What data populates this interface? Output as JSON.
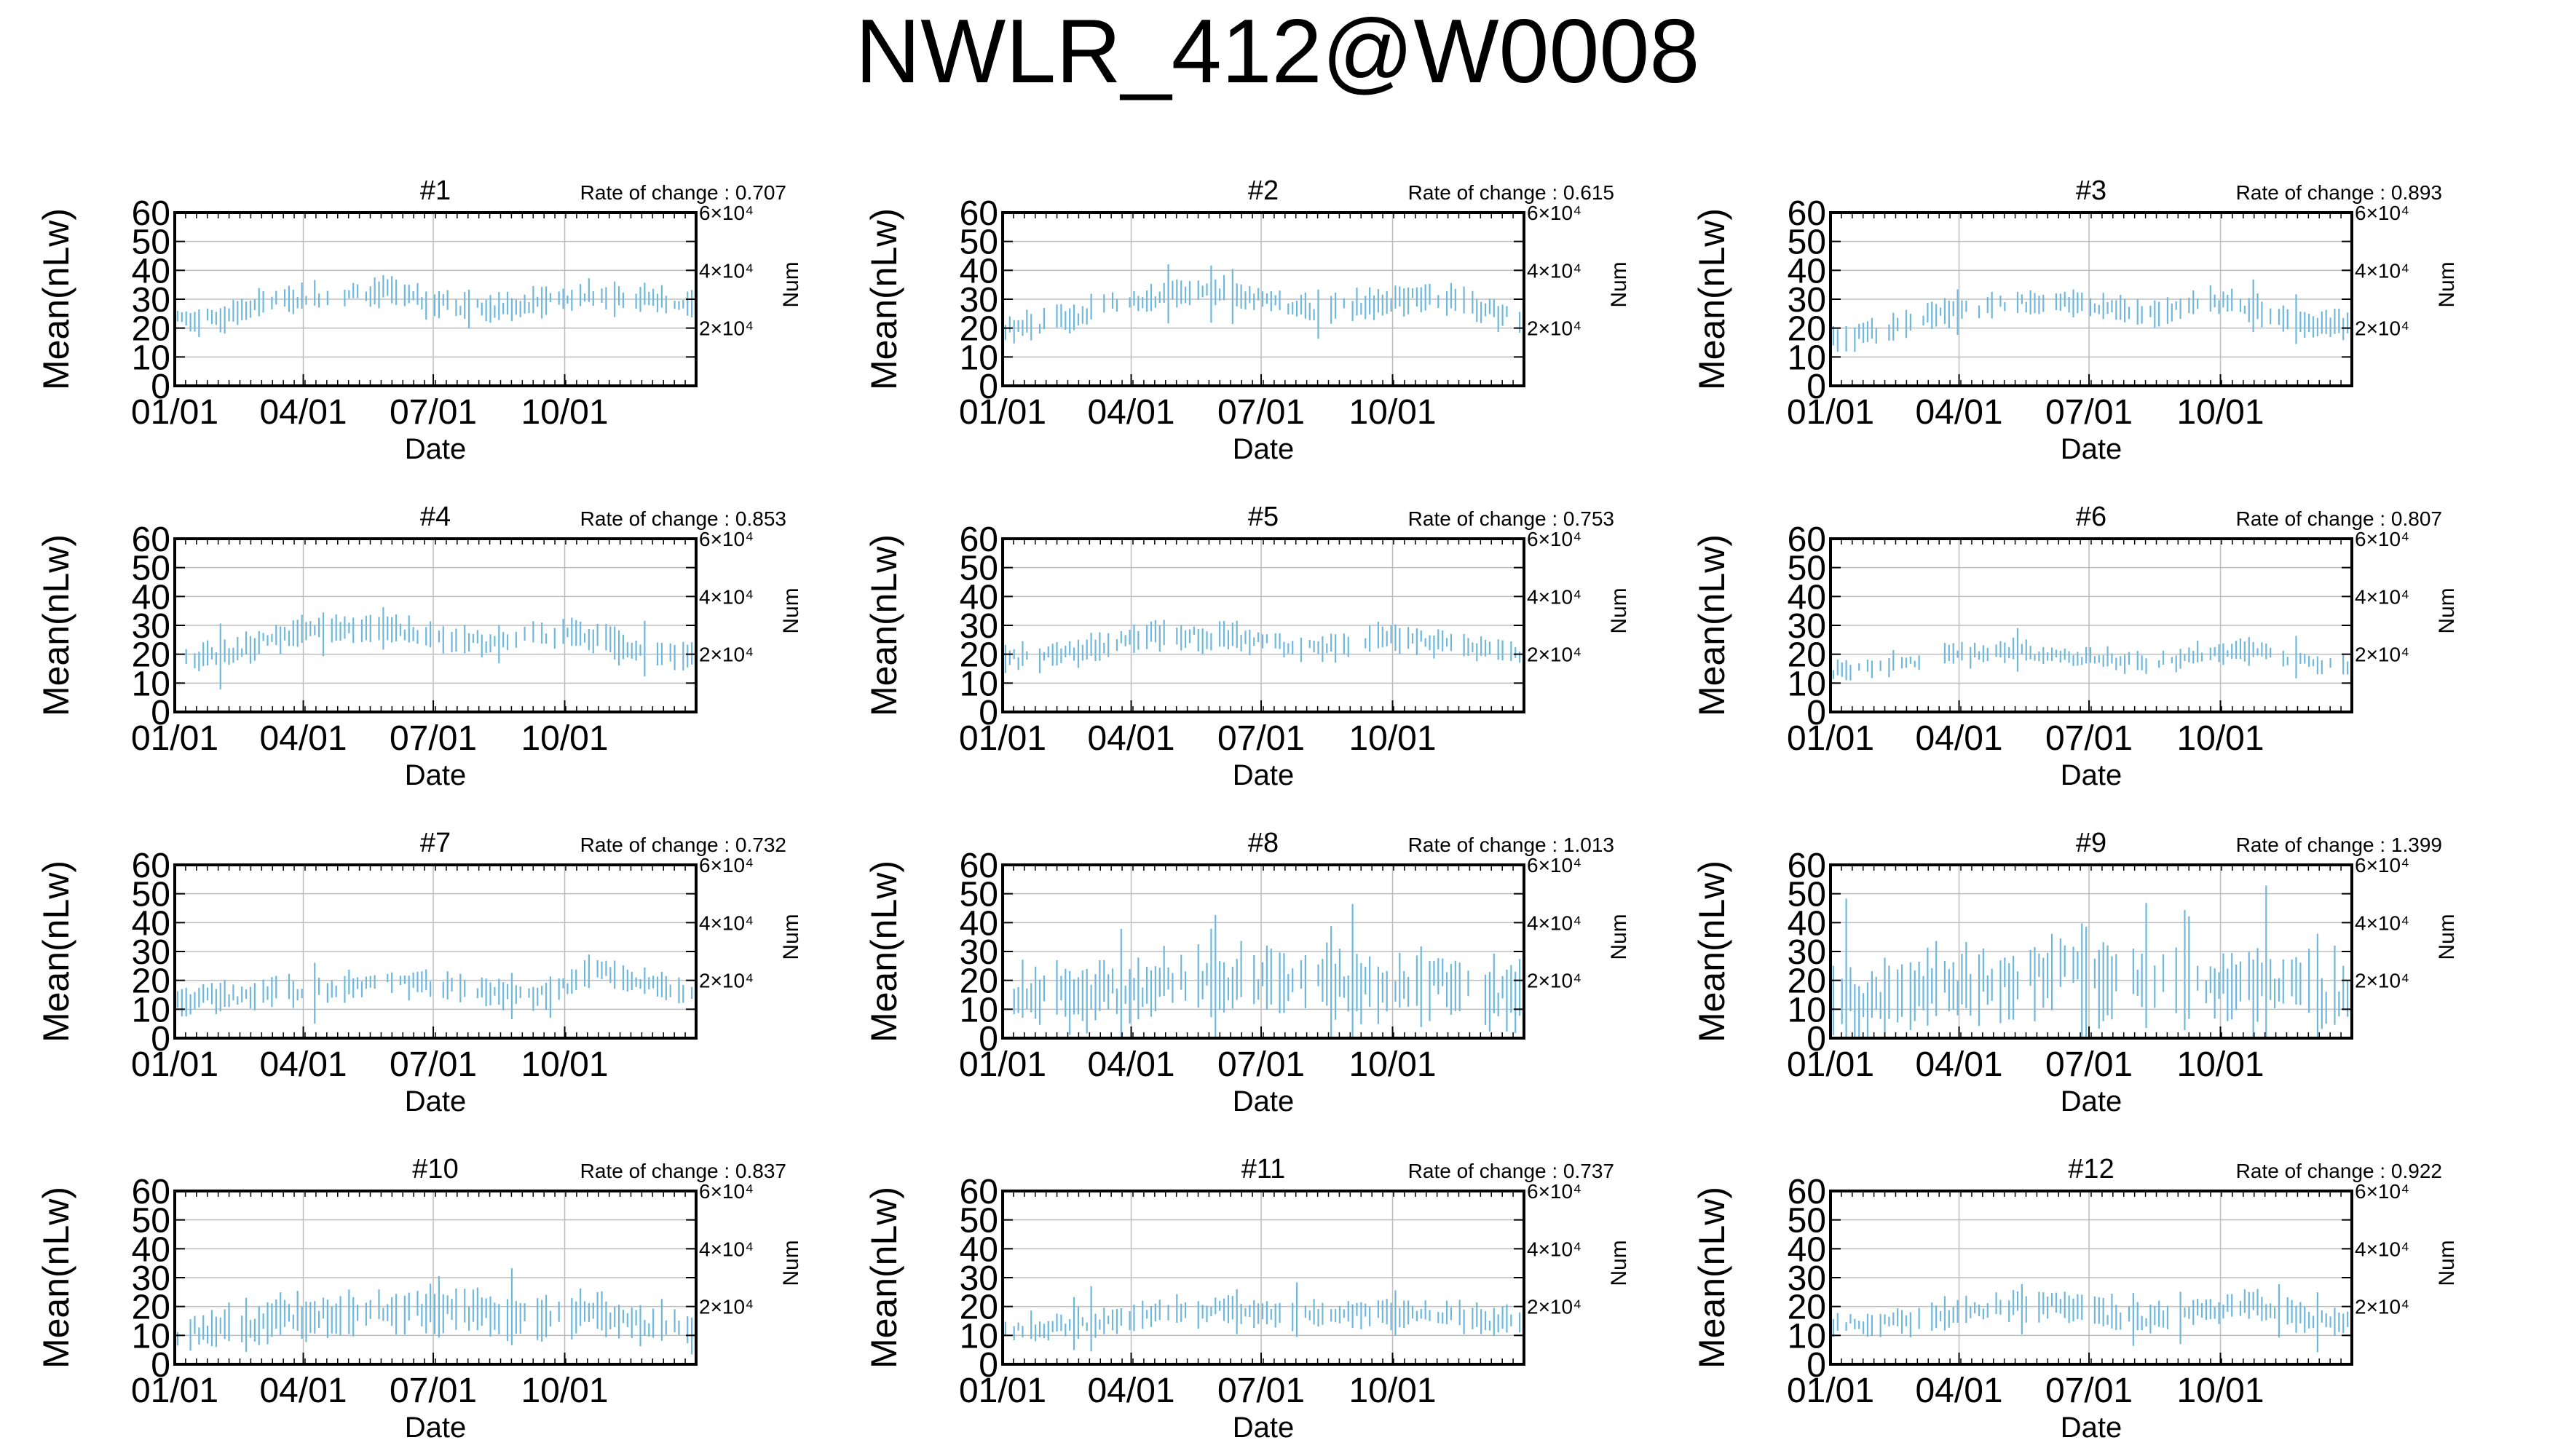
{
  "page_title": "NWLR_412@W0008",
  "style": {
    "bar_color": "#6fb8dc",
    "grid_color": "#bdbdbd",
    "axis_color": "#000000"
  },
  "chart_data": [
    {
      "type": "errorbar",
      "title": "#1",
      "rate_text": "Rate of change : 0.707",
      "xlabel": "Date",
      "ylabel": "Mean(nLw)",
      "y2label": "Num",
      "x_ticks": [
        "01/01",
        "04/01",
        "07/01",
        "10/01"
      ],
      "x_tick_dates": [
        "01/01",
        "04/01",
        "07/01",
        "10/01"
      ],
      "y_ticks": [
        "0",
        "10",
        "20",
        "30",
        "40",
        "50",
        "60"
      ],
      "ylim": [
        0,
        60
      ],
      "y2_ticks": [
        "2×10⁴",
        "4×10⁴",
        "6×10⁴"
      ],
      "grid": true,
      "profile": [
        24,
        23,
        26,
        30,
        31,
        32,
        33,
        30,
        28,
        27,
        28,
        31,
        32,
        31,
        30,
        27
      ],
      "spread": 4
    },
    {
      "type": "errorbar",
      "title": "#2",
      "rate_text": "Rate of change : 0.615",
      "xlabel": "Date",
      "ylabel": "Mean(nLw)",
      "y2label": "Num",
      "x_ticks": [
        "01/01",
        "04/01",
        "07/01",
        "10/01"
      ],
      "x_tick_dates": [
        "01/01",
        "04/01",
        "07/01",
        "10/01"
      ],
      "y_ticks": [
        "0",
        "10",
        "20",
        "30",
        "40",
        "50",
        "60"
      ],
      "ylim": [
        0,
        60
      ],
      "y2_ticks": [
        "2×10⁴",
        "4×10⁴",
        "6×10⁴"
      ],
      "grid": true,
      "profile": [
        20,
        21,
        24,
        28,
        30,
        32,
        33,
        31,
        28,
        26,
        27,
        29,
        31,
        30,
        26,
        22
      ],
      "spread": 4
    },
    {
      "type": "errorbar",
      "title": "#3",
      "rate_text": "Rate of change : 0.893",
      "xlabel": "Date",
      "ylabel": "Mean(nLw)",
      "y2label": "Num",
      "x_ticks": [
        "01/01",
        "04/01",
        "07/01",
        "10/01"
      ],
      "x_tick_dates": [
        "01/01",
        "04/01",
        "07/01",
        "10/01"
      ],
      "y_ticks": [
        "0",
        "10",
        "20",
        "30",
        "40",
        "50",
        "60"
      ],
      "ylim": [
        0,
        60
      ],
      "y2_ticks": [
        "2×10⁴",
        "4×10⁴",
        "6×10⁴"
      ],
      "grid": true,
      "profile": [
        17,
        18,
        21,
        25,
        27,
        28,
        29,
        28,
        26,
        25,
        27,
        29,
        28,
        24,
        22,
        20
      ],
      "spread": 4
    },
    {
      "type": "errorbar",
      "title": "#4",
      "rate_text": "Rate of change : 0.853",
      "xlabel": "Date",
      "ylabel": "Mean(nLw)",
      "y2label": "Num",
      "x_ticks": [
        "01/01",
        "04/01",
        "07/01",
        "10/01"
      ],
      "x_tick_dates": [
        "01/01",
        "04/01",
        "07/01",
        "10/01"
      ],
      "y_ticks": [
        "0",
        "10",
        "20",
        "30",
        "40",
        "50",
        "60"
      ],
      "ylim": [
        0,
        60
      ],
      "y2_ticks": [
        "2×10⁴",
        "4×10⁴",
        "6×10⁴"
      ],
      "grid": true,
      "profile": [
        18,
        19,
        22,
        26,
        28,
        29,
        28,
        27,
        25,
        24,
        26,
        27,
        26,
        23,
        21,
        20
      ],
      "spread": 4
    },
    {
      "type": "errorbar",
      "title": "#5",
      "rate_text": "Rate of change : 0.753",
      "xlabel": "Date",
      "ylabel": "Mean(nLw)",
      "y2label": "Num",
      "x_ticks": [
        "01/01",
        "04/01",
        "07/01",
        "10/01"
      ],
      "x_tick_dates": [
        "01/01",
        "04/01",
        "07/01",
        "10/01"
      ],
      "y_ticks": [
        "0",
        "10",
        "20",
        "30",
        "40",
        "50",
        "60"
      ],
      "ylim": [
        0,
        60
      ],
      "y2_ticks": [
        "2×10⁴",
        "4×10⁴",
        "6×10⁴"
      ],
      "grid": true,
      "profile": [
        18,
        19,
        21,
        24,
        26,
        27,
        26,
        25,
        23,
        22,
        24,
        26,
        25,
        23,
        21,
        19
      ],
      "spread": 4
    },
    {
      "type": "errorbar",
      "title": "#6",
      "rate_text": "Rate of change : 0.807",
      "xlabel": "Date",
      "ylabel": "Mean(nLw)",
      "y2label": "Num",
      "x_ticks": [
        "01/01",
        "04/01",
        "07/01",
        "10/01"
      ],
      "x_tick_dates": [
        "01/01",
        "04/01",
        "07/01",
        "10/01"
      ],
      "y_ticks": [
        "0",
        "10",
        "20",
        "30",
        "40",
        "50",
        "60"
      ],
      "ylim": [
        0,
        60
      ],
      "y2_ticks": [
        "2×10⁴",
        "4×10⁴",
        "6×10⁴"
      ],
      "grid": true,
      "profile": [
        14,
        15,
        17,
        19,
        20,
        21,
        20,
        19,
        18,
        17,
        18,
        21,
        22,
        19,
        17,
        16
      ],
      "spread": 3
    },
    {
      "type": "errorbar",
      "title": "#7",
      "rate_text": "Rate of change : 0.732",
      "xlabel": "Date",
      "ylabel": "Mean(nLw)",
      "y2label": "Num",
      "x_ticks": [
        "01/01",
        "04/01",
        "07/01",
        "10/01"
      ],
      "x_tick_dates": [
        "01/01",
        "04/01",
        "07/01",
        "10/01"
      ],
      "y_ticks": [
        "0",
        "10",
        "20",
        "30",
        "40",
        "50",
        "60"
      ],
      "ylim": [
        0,
        60
      ],
      "y2_ticks": [
        "2×10⁴",
        "4×10⁴",
        "6×10⁴"
      ],
      "grid": true,
      "profile": [
        13,
        14,
        15,
        16,
        17,
        18,
        19,
        19,
        18,
        16,
        15,
        16,
        24,
        20,
        17,
        15
      ],
      "spread": 4
    },
    {
      "type": "errorbar",
      "title": "#8",
      "rate_text": "Rate of change : 1.013",
      "xlabel": "Date",
      "ylabel": "Mean(nLw)",
      "y2label": "Num",
      "x_ticks": [
        "01/01",
        "04/01",
        "07/01",
        "10/01"
      ],
      "x_tick_dates": [
        "01/01",
        "04/01",
        "07/01",
        "10/01"
      ],
      "y_ticks": [
        "0",
        "10",
        "20",
        "30",
        "40",
        "50",
        "60"
      ],
      "ylim": [
        0,
        60
      ],
      "y2_ticks": [
        "2×10⁴",
        "4×10⁴",
        "6×10⁴"
      ],
      "grid": true,
      "profile": [
        13,
        14,
        15,
        16,
        18,
        20,
        21,
        21,
        20,
        20,
        19,
        18,
        20,
        19,
        16,
        14
      ],
      "spread": 9
    },
    {
      "type": "errorbar",
      "title": "#9",
      "rate_text": "Rate of change : 1.399",
      "xlabel": "Date",
      "ylabel": "Mean(nLw)",
      "y2label": "Num",
      "x_ticks": [
        "01/01",
        "04/01",
        "07/01",
        "10/01"
      ],
      "x_tick_dates": [
        "01/01",
        "04/01",
        "07/01",
        "10/01"
      ],
      "y_ticks": [
        "0",
        "10",
        "20",
        "30",
        "40",
        "50",
        "60"
      ],
      "ylim": [
        0,
        60
      ],
      "y2_ticks": [
        "2×10⁴",
        "4×10⁴",
        "6×10⁴"
      ],
      "grid": true,
      "profile": [
        12,
        13,
        14,
        16,
        18,
        21,
        22,
        22,
        21,
        21,
        20,
        19,
        19,
        17,
        16,
        13
      ],
      "spread": 11
    },
    {
      "type": "errorbar",
      "title": "#10",
      "rate_text": "Rate of change : 0.837",
      "xlabel": "Date",
      "ylabel": "Mean(nLw)",
      "y2label": "Num",
      "x_ticks": [
        "01/01",
        "04/01",
        "07/01",
        "10/01"
      ],
      "x_tick_dates": [
        "01/01",
        "04/01",
        "07/01",
        "10/01"
      ],
      "y_ticks": [
        "0",
        "10",
        "20",
        "30",
        "40",
        "50",
        "60"
      ],
      "ylim": [
        0,
        60
      ],
      "y2_ticks": [
        "2×10⁴",
        "4×10⁴",
        "6×10⁴"
      ],
      "grid": true,
      "profile": [
        11,
        11,
        13,
        15,
        17,
        18,
        19,
        19,
        18,
        18,
        17,
        18,
        17,
        15,
        13,
        12
      ],
      "spread": 6
    },
    {
      "type": "errorbar",
      "title": "#11",
      "rate_text": "Rate of change : 0.737",
      "xlabel": "Date",
      "ylabel": "Mean(nLw)",
      "y2label": "Num",
      "x_ticks": [
        "01/01",
        "04/01",
        "07/01",
        "10/01"
      ],
      "x_tick_dates": [
        "01/01",
        "04/01",
        "07/01",
        "10/01"
      ],
      "y_ticks": [
        "0",
        "10",
        "20",
        "30",
        "40",
        "50",
        "60"
      ],
      "ylim": [
        0,
        60
      ],
      "y2_ticks": [
        "2×10⁴",
        "4×10⁴",
        "6×10⁴"
      ],
      "grid": true,
      "profile": [
        12,
        12,
        14,
        15,
        17,
        18,
        19,
        19,
        18,
        17,
        17,
        18,
        18,
        17,
        15,
        14
      ],
      "spread": 4
    },
    {
      "type": "errorbar",
      "title": "#12",
      "rate_text": "Rate of change : 0.922",
      "xlabel": "Date",
      "ylabel": "Mean(nLw)",
      "y2label": "Num",
      "x_ticks": [
        "01/01",
        "04/01",
        "07/01",
        "10/01"
      ],
      "x_tick_dates": [
        "01/01",
        "04/01",
        "07/01",
        "10/01"
      ],
      "y_ticks": [
        "0",
        "10",
        "20",
        "30",
        "40",
        "50",
        "60"
      ],
      "ylim": [
        0,
        60
      ],
      "y2_ticks": [
        "2×10⁴",
        "4×10⁴",
        "6×10⁴"
      ],
      "grid": true,
      "profile": [
        14,
        14,
        15,
        16,
        18,
        20,
        21,
        20,
        17,
        16,
        17,
        19,
        21,
        18,
        16,
        15
      ],
      "spread": 4
    }
  ]
}
